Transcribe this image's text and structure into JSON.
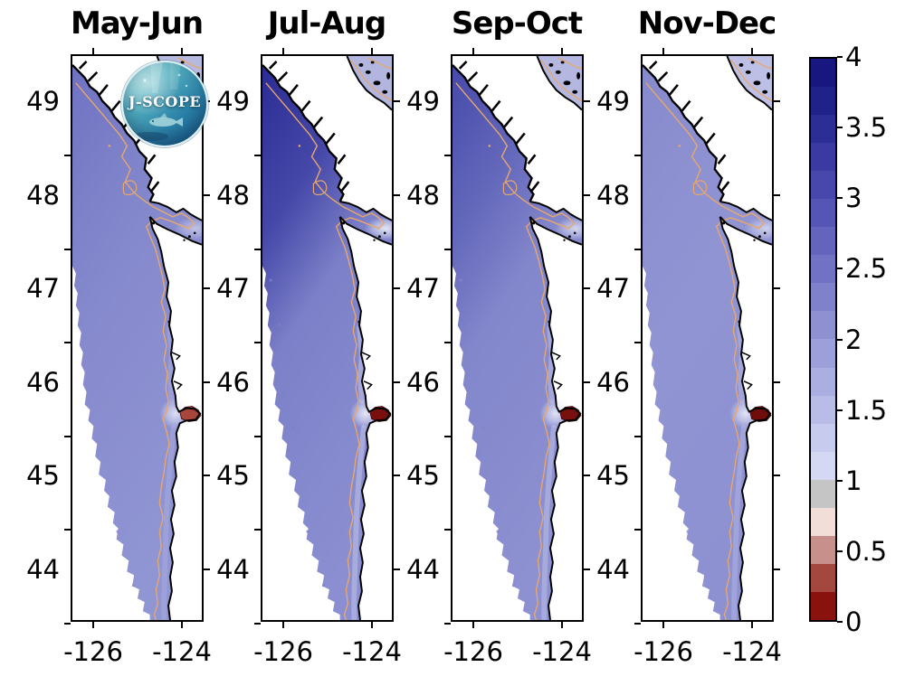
{
  "figure": {
    "logo": {
      "text": "J-SCOPE"
    },
    "panels": [
      {
        "title": "May-Jun",
        "palette": {
          "top": "#6e72c2",
          "mid": "#7e82c9",
          "band": "#878bce",
          "south": "#9095d3"
        },
        "strait_light_opacity": 0.5,
        "plume_opacity": 0.75,
        "coast_strip_opacity": 0.25,
        "estuary_color": "#a8453c",
        "georgia_color": "#b7badf"
      },
      {
        "title": "Jul-Aug",
        "palette": {
          "top": "#2b2b94",
          "mid": "#4548a8",
          "band": "#7c80c8",
          "south": "#8b8fd1"
        },
        "strait_light_opacity": 0.85,
        "plume_opacity": 0.85,
        "coast_strip_opacity": 0.5,
        "estuary_color": "#7a100d",
        "georgia_color": "#b2b5de"
      },
      {
        "title": "Sep-Oct",
        "palette": {
          "top": "#4649a9",
          "mid": "#6468bb",
          "band": "#8286cb",
          "south": "#8d91d1"
        },
        "strait_light_opacity": 0.7,
        "plume_opacity": 0.8,
        "coast_strip_opacity": 0.45,
        "estuary_color": "#7a100d",
        "georgia_color": "#b4b7df"
      },
      {
        "title": "Nov-Dec",
        "palette": {
          "top": "#8689cc",
          "mid": "#8d91d1",
          "band": "#9094d3",
          "south": "#8d91d1"
        },
        "strait_light_opacity": 0.6,
        "plume_opacity": 0.8,
        "coast_strip_opacity": 0.35,
        "estuary_color": "#700d0a",
        "georgia_color": "#bdc0e4"
      }
    ],
    "axes": {
      "lat_tick_labels": [
        "49",
        "48",
        "47",
        "46",
        "45",
        "44"
      ],
      "lon_tick_labels": [
        "-126",
        "-124"
      ]
    },
    "colorbar": {
      "tick_labels": [
        "4",
        "3.5",
        "3",
        "2.5",
        "2",
        "1.5",
        "1",
        "0.5",
        "0"
      ]
    },
    "map_colors": {
      "coastline": "#000000",
      "land": "#ffffff",
      "contour_line": "#e9a768"
    }
  },
  "chart_data": {
    "type": "heatmap",
    "subtype": "geographic map grid, 4 seasonal panels of the Washington-Oregon / Vancouver Island coast",
    "panels": [
      "May-Jun",
      "Jul-Aug",
      "Sep-Oct",
      "Nov-Dec"
    ],
    "x_axis": {
      "label": "",
      "ticks": [
        -126,
        -124
      ],
      "range": [
        -126.5,
        -123.5
      ]
    },
    "y_axis": {
      "label": "",
      "ticks": [
        49,
        48,
        47,
        46,
        45,
        44
      ],
      "range": [
        43.45,
        49.5
      ]
    },
    "colorbar": {
      "range": [
        0,
        4
      ],
      "ticks": [
        4,
        3.5,
        3,
        2.5,
        2,
        1.5,
        1,
        0.5,
        0
      ],
      "n_segments": 20,
      "segment_step": 0.2,
      "colors_top_to_bottom": [
        "#17177f",
        "#21218a",
        "#2d2d96",
        "#3a3aa2",
        "#4747ac",
        "#5555b5",
        "#6464bd",
        "#7272c4",
        "#8081cb",
        "#8e90d2",
        "#9c9fd9",
        "#aaaee0",
        "#b9bce7",
        "#c7cbee",
        "#d5d8f3",
        "#c6c5c5",
        "#f2ded8",
        "#c8908a",
        "#a4483f",
        "#8a120e"
      ]
    },
    "panel_shading_read_from_map": {
      "May-Jun": "fairly uniform medium blue-purple (~2-2.5) over the whole model band",
      "Jul-Aug": "darkest blue offshore to the northwest (~3-3.5), lighter (~2) along the coast and very light (~1.5) in the eastern Strait of Juan de Fuca",
      "Sep-Oct": "dark blue offshore northwest (~3), medium (~2-2.5) elsewhere",
      "Nov-Dec": "uniform medium-light blue-purple (~2) everywhere"
    },
    "visible_features": [
      "black coastline with Vancouver Island, Strait of Juan de Fuca, and the outer WA/OR coast",
      "orange contour line running along the shelf in every panel",
      "dark-red patch at the river mouth near 46.2N on the coast in every panel",
      "whitish plume just offshore of the red patch",
      "light lavender water with islands in the top-right (Strait of Georgia) corner",
      "J-SCOPE circular logo overlapping the first panel"
    ]
  }
}
